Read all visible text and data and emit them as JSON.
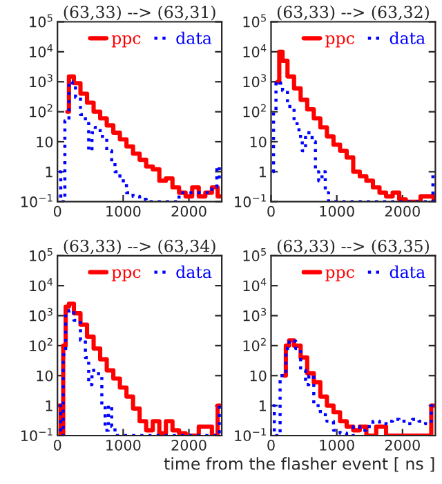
{
  "chart_data": [
    {
      "type": "step",
      "title": "(63,33) --> (63,31)",
      "xlim": [
        0,
        2500
      ],
      "xticks": [
        0,
        1000,
        2000
      ],
      "ylim": [
        0.1,
        100000
      ],
      "log": "y",
      "yticks": [
        {
          "value": 0.1,
          "label": "10$^{−1}$"
        },
        1,
        10,
        {
          "value": 100,
          "label": "10$^{2}$"
        },
        {
          "value": 1000,
          "label": "10$^{3}$"
        },
        {
          "value": 10000,
          "label": "10$^{4}$"
        },
        {
          "value": 100000,
          "label": "10$^{5}$"
        }
      ],
      "legend": "top right",
      "grid": false,
      "series": [
        {
          "name": "ppc",
          "color": "#ff0000",
          "line_style": "solid",
          "x": [
            150,
            200,
            300,
            400,
            500,
            600,
            700,
            800,
            900,
            1000,
            1100,
            1200,
            1300,
            1400,
            1500,
            1600,
            1700,
            1800,
            1900,
            2000,
            2100,
            2200,
            2300,
            2400,
            2475
          ],
          "values": [
            100,
            1500,
            900,
            400,
            200,
            100,
            60,
            35,
            20,
            12,
            7,
            4,
            2.5,
            1.5,
            1.2,
            0.5,
            0.6,
            0.3,
            0.2,
            0.15,
            0.3,
            0.15,
            0.2,
            0.3,
            0.15
          ]
        },
        {
          "name": "data",
          "color": "#0000ff",
          "line_style": "dotted",
          "x": [
            25,
            75,
            150,
            200,
            250,
            300,
            400,
            450,
            500,
            550,
            600,
            700,
            800,
            850,
            900,
            1000,
            1100,
            1200,
            1300,
            1400,
            2300,
            2400,
            2450,
            2475
          ],
          "values": [
            1,
            0.1,
            50,
            1000,
            800,
            300,
            80,
            50,
            5,
            20,
            30,
            15,
            5,
            2,
            1,
            0.5,
            0.2,
            0.15,
            0.12,
            0.1,
            0.2,
            0.3,
            1.5,
            0.5
          ]
        }
      ]
    },
    {
      "type": "step",
      "title": "(63,33) --> (63,32)",
      "xlim": [
        0,
        2500
      ],
      "xticks": [
        0,
        1000,
        2000
      ],
      "ylim": [
        0.1,
        100000
      ],
      "log": "y",
      "yticks": [
        {
          "value": 0.1,
          "label": "10$^{−1}$"
        },
        1,
        10,
        {
          "value": 100,
          "label": "10$^{2}$"
        },
        {
          "value": 1000,
          "label": "10$^{3}$"
        },
        {
          "value": 10000,
          "label": "10$^{4}$"
        },
        {
          "value": 100000,
          "label": "10$^{5}$"
        }
      ],
      "legend": "top right",
      "grid": false,
      "series": [
        {
          "name": "ppc",
          "color": "#ff0000",
          "line_style": "solid",
          "x": [
            100,
            150,
            200,
            300,
            400,
            500,
            600,
            700,
            800,
            900,
            1000,
            1100,
            1200,
            1300,
            1400,
            1500,
            1600,
            1700,
            1800,
            1900,
            2000,
            2100,
            2450,
            2500
          ],
          "values": [
            1000,
            10000,
            5000,
            1500,
            600,
            250,
            120,
            60,
            30,
            15,
            8,
            5,
            3,
            1,
            0.7,
            0.5,
            0.3,
            0.2,
            0.15,
            0.2,
            0.12,
            0.1,
            0.15,
            0.1
          ]
        },
        {
          "name": "data",
          "color": "#0000ff",
          "line_style": "dotted",
          "x": [
            25,
            50,
            100,
            150,
            200,
            300,
            400,
            450,
            500,
            550,
            600,
            650,
            700,
            750,
            800,
            850,
            900,
            2450,
            2475
          ],
          "values": [
            1,
            100,
            1000,
            900,
            500,
            150,
            40,
            15,
            5,
            20,
            20,
            10,
            1,
            0.5,
            1,
            0.2,
            0.1,
            0.1,
            1
          ]
        }
      ]
    },
    {
      "type": "step",
      "title": "(63,33) --> (63,34)",
      "xlim": [
        0,
        2500
      ],
      "xticks": [
        0,
        1000,
        2000
      ],
      "ylim": [
        0.1,
        100000
      ],
      "log": "y",
      "yticks": [
        {
          "value": 0.1,
          "label": "10$^{−1}$"
        },
        1,
        10,
        {
          "value": 100,
          "label": "10$^{2}$"
        },
        {
          "value": 1000,
          "label": "10$^{3}$"
        },
        {
          "value": 10000,
          "label": "10$^{4}$"
        },
        {
          "value": 100000,
          "label": "10$^{5}$"
        }
      ],
      "legend": "top right",
      "grid": false,
      "series": [
        {
          "name": "ppc",
          "color": "#ff0000",
          "line_style": "solid",
          "x": [
            25,
            75,
            100,
            150,
            200,
            300,
            400,
            500,
            600,
            700,
            800,
            900,
            1000,
            1100,
            1200,
            1300,
            1400,
            1500,
            1600,
            1700,
            1800,
            1900,
            2000,
            2300,
            2400,
            2475
          ],
          "values": [
            1,
            0.1,
            100,
            2000,
            2500,
            1200,
            500,
            200,
            80,
            35,
            15,
            8,
            4,
            2,
            0.8,
            0.3,
            0.15,
            0.3,
            0.12,
            0.3,
            0.15,
            0.12,
            0.1,
            0.2,
            0.1,
            1
          ]
        },
        {
          "name": "data",
          "color": "#0000ff",
          "line_style": "dotted",
          "x": [
            25,
            75,
            100,
            150,
            200,
            300,
            400,
            450,
            500,
            550,
            600,
            650,
            700,
            750,
            800,
            850,
            900,
            2450,
            2475
          ],
          "values": [
            1,
            0.1,
            50,
            1200,
            1500,
            700,
            150,
            40,
            5,
            15,
            15,
            10,
            1,
            0.15,
            1,
            0.2,
            0.1,
            0.1,
            1
          ]
        }
      ]
    },
    {
      "type": "step",
      "title": "(63,33) --> (63,35)",
      "xlabel": "time from the flasher event [ ns ]",
      "xlim": [
        0,
        2500
      ],
      "xticks": [
        0,
        1000,
        2000
      ],
      "ylim": [
        0.1,
        100000
      ],
      "log": "y",
      "yticks": [
        {
          "value": 0.1,
          "label": "10$^{−1}$"
        },
        1,
        10,
        {
          "value": 100,
          "label": "10$^{2}$"
        },
        {
          "value": 1000,
          "label": "10$^{3}$"
        },
        {
          "value": 10000,
          "label": "10$^{4}$"
        },
        {
          "value": 100000,
          "label": "10$^{5}$"
        }
      ],
      "legend": "top right",
      "grid": false,
      "series": [
        {
          "name": "ppc",
          "color": "#ff0000",
          "line_style": "solid",
          "x": [
            200,
            250,
            300,
            400,
            500,
            600,
            700,
            800,
            900,
            1000,
            1100,
            1200,
            1300,
            1400,
            1500,
            1700,
            1800,
            2400,
            2475
          ],
          "values": [
            10,
            100,
            150,
            100,
            40,
            12,
            6,
            2,
            1,
            0.6,
            0.3,
            0.2,
            0.15,
            0.2,
            0.1,
            0.2,
            0.1,
            0.1,
            1
          ]
        },
        {
          "name": "data",
          "color": "#0000ff",
          "line_style": "dotted",
          "x": [
            25,
            75,
            200,
            250,
            300,
            350,
            400,
            500,
            550,
            600,
            700,
            800,
            900,
            1000,
            1100,
            1200,
            1300,
            1400,
            1500,
            1600,
            1700,
            1800,
            1900,
            2000,
            2100,
            2200,
            2300,
            2400,
            2475
          ],
          "values": [
            1,
            0.1,
            10,
            80,
            150,
            140,
            80,
            15,
            5,
            10,
            1,
            0.5,
            0.3,
            0.15,
            0.12,
            0.1,
            0.2,
            0.15,
            0.2,
            0.3,
            0.25,
            0.3,
            0.35,
            0.3,
            0.25,
            0.35,
            0.3,
            0.25,
            1
          ]
        }
      ]
    }
  ]
}
